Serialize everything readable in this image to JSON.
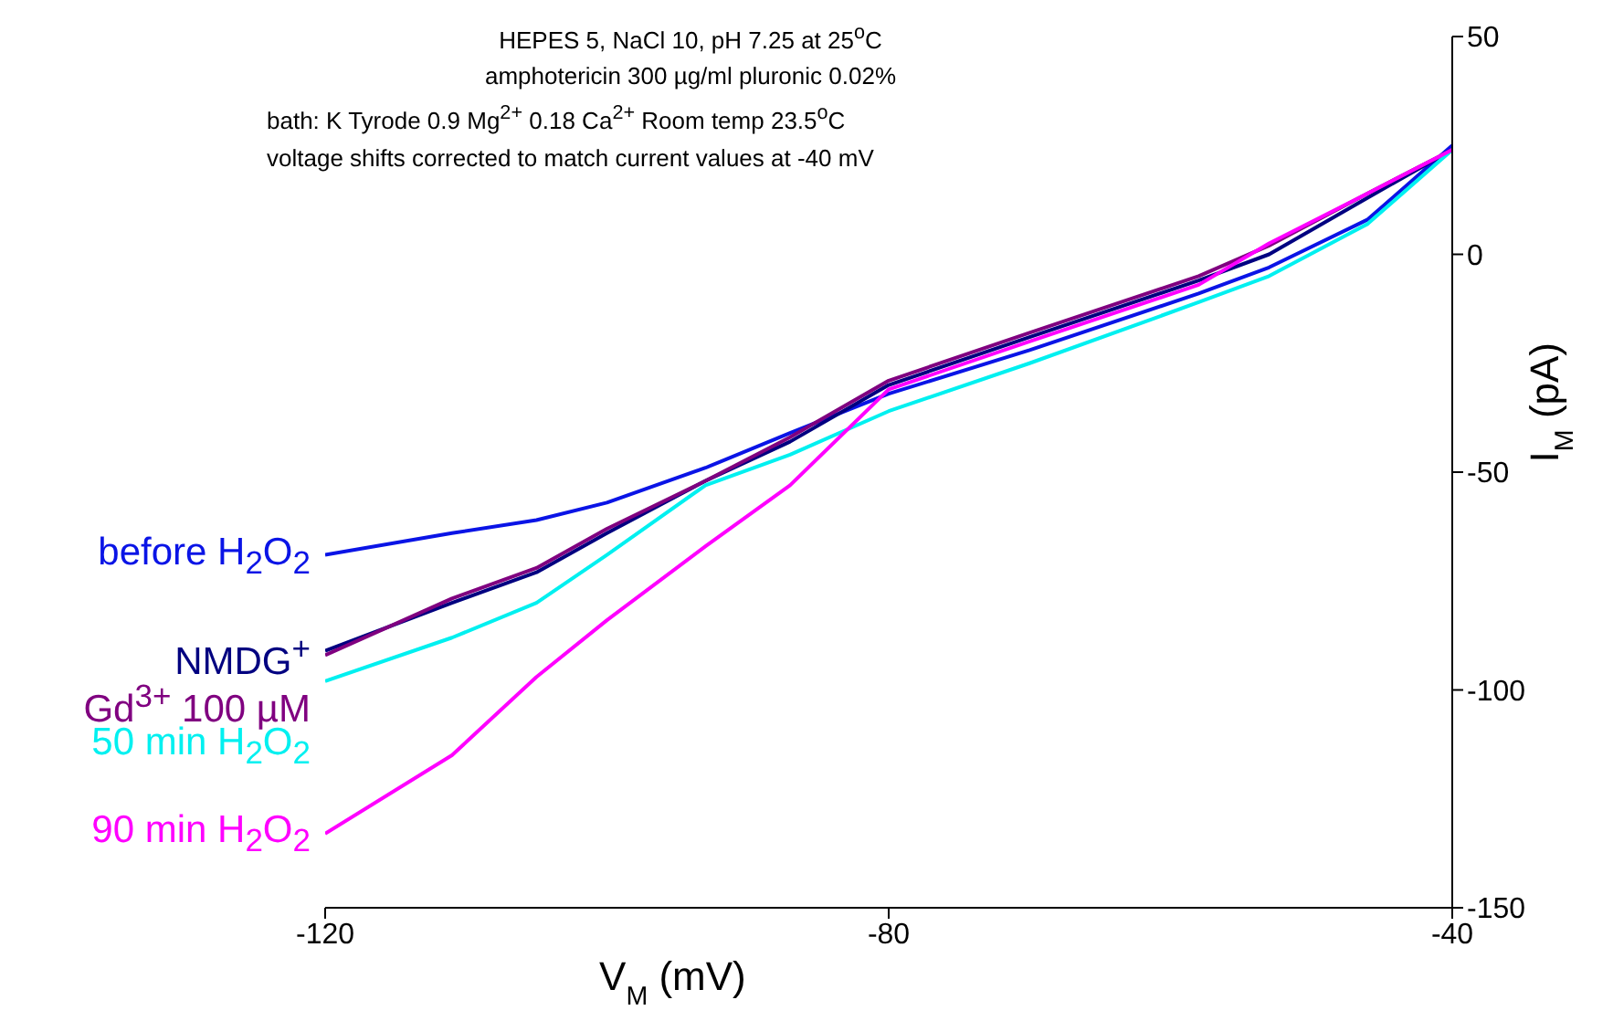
{
  "chart_data": {
    "type": "line",
    "xlabel": "V$_{M}$ (mV)",
    "ylabel": "I$_{M}$ (pA)",
    "annotations": [
      "HEPES 5, NaCl 10, pH 7.25 at 25$^{o}$C",
      "amphotericin 300 µg/ml pluronic 0.02%",
      "bath: K Tyrode 0.9 Mg$^{2+}$ 0.18 Ca$^{2+}$ Room temp 23.5$^{o}$C",
      "voltage shifts corrected to match current values at -40 mV"
    ],
    "x": [
      -120,
      -111,
      -105,
      -100,
      -93,
      -87,
      -80,
      -70,
      -58,
      -53,
      -46,
      -40
    ],
    "series": [
      {
        "name": "before H$_{2}$O$_{2}$",
        "color": "#0a14e6",
        "values": [
          -69,
          -64,
          -61,
          -57,
          -49,
          -41,
          -32,
          -22,
          -9,
          -3,
          8,
          25
        ]
      },
      {
        "name": "NMDG$^{+}$",
        "color": "#000080",
        "values": [
          -91,
          -80,
          -73,
          -64,
          -52,
          -43,
          -30,
          -19,
          -6,
          0,
          13,
          24
        ]
      },
      {
        "name": "Gd$^{3+}$ 100 µM",
        "color": "#800080",
        "values": [
          -92,
          -79,
          -72,
          -63,
          -52,
          -42,
          -29,
          -18,
          -5,
          2,
          14,
          24
        ]
      },
      {
        "name": "50 min H$_{2}$O$_{2}$",
        "color": "#00f0f0",
        "values": [
          -98,
          -88,
          -80,
          -69,
          -53,
          -46,
          -36,
          -25,
          -11,
          -5,
          7,
          24
        ]
      },
      {
        "name": "90 min H$_{2}$O$_{2}$",
        "color": "#ff00ff",
        "values": [
          -133,
          -115,
          -97,
          -84,
          -67,
          -53,
          -31,
          -20,
          -7,
          2.5,
          14,
          24
        ]
      }
    ],
    "xlim": [
      -120,
      -40
    ],
    "xticks": [
      -120,
      -80,
      -40
    ],
    "ylim": [
      -150,
      50
    ],
    "yticks": [
      50,
      0,
      -50,
      -100,
      -150
    ]
  }
}
